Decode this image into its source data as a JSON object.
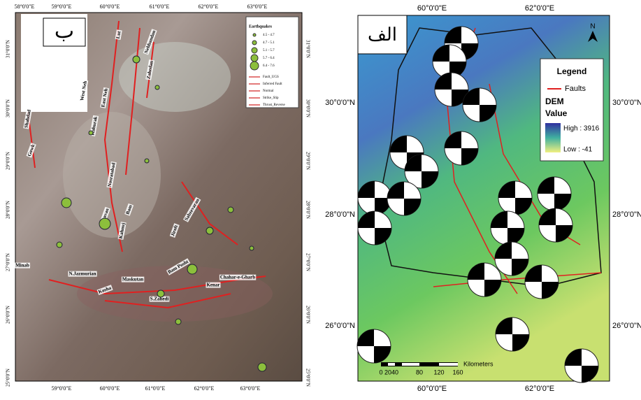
{
  "left_map": {
    "panel_label": "ب",
    "top_lon": [
      "58°0'0\"E",
      "59°0'0\"E",
      "60°0'0\"E",
      "61°0'0\"E",
      "62°0'0\"E",
      "63°0'0\"E"
    ],
    "bottom_lon": [
      "59°0'0\"E",
      "60°0'0\"E",
      "61°0'0\"E",
      "62°0'0\"E",
      "63°0'0\"E"
    ],
    "lat": [
      "31°0'0\"N",
      "30°0'0\"N",
      "29°0'0\"N",
      "28°0'0\"N",
      "27°0'0\"N",
      "26°0'0\"N",
      "25°0'0\"N"
    ],
    "legend": {
      "title": "Earthquakes",
      "magnitudes": [
        "4.5 - 4.7",
        "4.7 - 5.1",
        "5.1 - 5.7",
        "5.7 - 6.4",
        "6.4 - 7.6"
      ],
      "lines": [
        "Fault_UGS",
        "Inferred Fault",
        "Normal",
        "Strike_Slip",
        "Thrust_Reverse"
      ]
    },
    "fault_names": [
      "Lut",
      "Nehbandan",
      "Zahedan",
      "Kahurak",
      "West Neh",
      "East Neh",
      "Nosratabad",
      "Shahdad",
      "Gowk",
      "Bam",
      "Sabzevaran",
      "Jiroft",
      "Kahnuj",
      "Saravan",
      "Minab",
      "N.Jazmurian",
      "Maskutan",
      "Bam Posht",
      "Kosha",
      "S.Zahedi",
      "Kenar",
      "Chahar-e-Gharb"
    ]
  },
  "right_map": {
    "panel_label": "الف",
    "north": "N",
    "top_lon": [
      "60°0'0\"E",
      "62°0'0\"E"
    ],
    "bottom_lon": [
      "60°0'0\"E",
      "62°0'0\"E"
    ],
    "left_lat": [
      "30°0'0\"N",
      "28°0'0\"N",
      "26°0'0\"N"
    ],
    "right_lat": [
      "30°0'0\"N",
      "28°0'0\"N",
      "26°0'0\"N"
    ],
    "legend": {
      "title": "Legend",
      "faults": "Faults",
      "dem": "DEM",
      "value": "Value",
      "high": "High : 3916",
      "low": "Low : -41"
    },
    "scale": {
      "ticks": [
        "0",
        "20",
        "40",
        "80",
        "120",
        "160"
      ],
      "unit": "Kilometers"
    }
  }
}
